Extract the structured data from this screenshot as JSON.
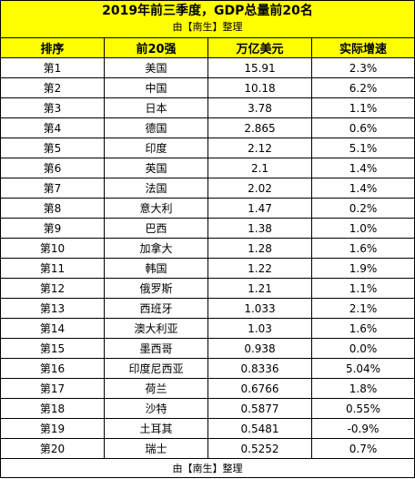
{
  "title": "2019年前三季度，GDP总量前20名",
  "subtitle": "由【南生】整理",
  "footer": "由【南生】整理",
  "colors": {
    "header_bg": "#ffff00",
    "border": "#000000"
  },
  "columns": [
    "排序",
    "前20强",
    "万亿美元",
    "实际增速"
  ],
  "rows": [
    [
      "第1",
      "美国",
      "15.91",
      "2.3%"
    ],
    [
      "第2",
      "中国",
      "10.18",
      "6.2%"
    ],
    [
      "第3",
      "日本",
      "3.78",
      "1.1%"
    ],
    [
      "第4",
      "德国",
      "2.865",
      "0.6%"
    ],
    [
      "第5",
      "印度",
      "2.12",
      "5.1%"
    ],
    [
      "第6",
      "英国",
      "2.1",
      "1.4%"
    ],
    [
      "第7",
      "法国",
      "2.02",
      "1.4%"
    ],
    [
      "第8",
      "意大利",
      "1.47",
      "0.2%"
    ],
    [
      "第9",
      "巴西",
      "1.38",
      "1.0%"
    ],
    [
      "第10",
      "加拿大",
      "1.28",
      "1.6%"
    ],
    [
      "第11",
      "韩国",
      "1.22",
      "1.9%"
    ],
    [
      "第12",
      "俄罗斯",
      "1.21",
      "1.1%"
    ],
    [
      "第13",
      "西班牙",
      "1.033",
      "2.1%"
    ],
    [
      "第14",
      "澳大利亚",
      "1.03",
      "1.6%"
    ],
    [
      "第15",
      "墨西哥",
      "0.938",
      "0.0%"
    ],
    [
      "第16",
      "印度尼西亚",
      "0.8336",
      "5.04%"
    ],
    [
      "第17",
      "荷兰",
      "0.6766",
      "1.8%"
    ],
    [
      "第18",
      "沙特",
      "0.5877",
      "0.55%"
    ],
    [
      "第19",
      "土耳其",
      "0.5481",
      "-0.9%"
    ],
    [
      "第20",
      "瑞士",
      "0.5252",
      "0.7%"
    ]
  ]
}
